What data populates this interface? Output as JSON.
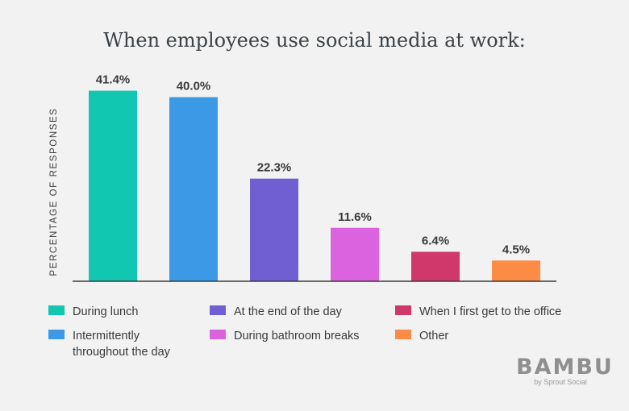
{
  "chart_data": {
    "type": "bar",
    "title": "When employees use social media at work:",
    "ylabel": "PERCENTAGE OF RESPONSES",
    "xlabel": "",
    "ylim": [
      0,
      45
    ],
    "grid": false,
    "legend_placement": "bottom",
    "categories": [
      "During lunch",
      "Intermittently throughout the day",
      "At the end of the day",
      "During bathroom breaks",
      "When I first get to the office",
      "Other"
    ],
    "values": [
      41.4,
      40.0,
      22.3,
      11.6,
      6.4,
      4.5
    ],
    "value_labels": [
      "41.4%",
      "40.0%",
      "22.3%",
      "11.6%",
      "6.4%",
      "4.5%"
    ],
    "colors": [
      "#12c7b1",
      "#3b99e6",
      "#6f5fd3",
      "#dc63df",
      "#d0376a",
      "#fb8b45"
    ]
  },
  "legend": [
    {
      "label": "During lunch",
      "color": "#12c7b1"
    },
    {
      "label": "Intermittently throughout the day",
      "color": "#3b99e6"
    },
    {
      "label": "At the end of the day",
      "color": "#6f5fd3"
    },
    {
      "label": "During bathroom breaks",
      "color": "#dc63df"
    },
    {
      "label": "When I first get to the office",
      "color": "#d0376a"
    },
    {
      "label": "Other",
      "color": "#fb8b45"
    }
  ],
  "branding": {
    "logo_text": "BAMBU",
    "logo_subtext": "by Sprout Social"
  }
}
